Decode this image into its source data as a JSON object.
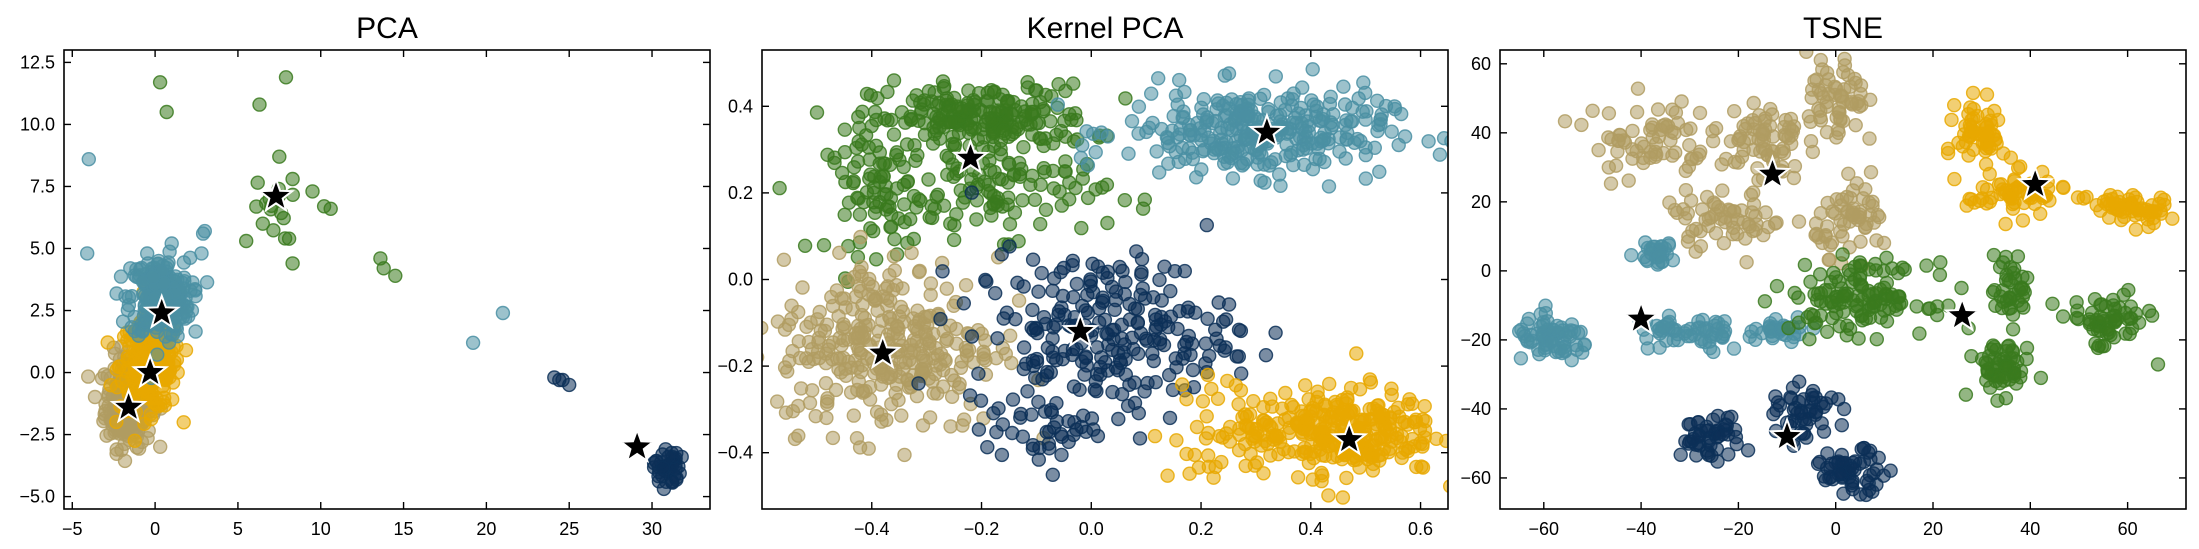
{
  "colors": {
    "cluster_teal": "#4a8fa3",
    "cluster_green": "#3a7a1e",
    "cluster_tan": "#b09c62",
    "cluster_gold": "#e8a800",
    "cluster_navy": "#0c3058",
    "star": "#000000"
  },
  "chart_data": [
    {
      "type": "scatter",
      "title": "PCA",
      "xlim": [
        -5.5,
        33.5
      ],
      "ylim": [
        -5.5,
        13.0
      ],
      "xticks": [
        -5,
        0,
        5,
        10,
        15,
        20,
        25,
        30
      ],
      "yticks": [
        -5.0,
        -2.5,
        0.0,
        2.5,
        5.0,
        7.5,
        10.0,
        12.5
      ],
      "xtick_labels": [
        "−5",
        "0",
        "5",
        "10",
        "15",
        "20",
        "25",
        "30"
      ],
      "ytick_labels": [
        "−5.0",
        "−2.5",
        "0.0",
        "2.5",
        "5.0",
        "7.5",
        "10.0",
        "12.5"
      ],
      "clusters": [
        {
          "color": "cluster_tan",
          "cx": -1.6,
          "cy": -1.2,
          "sx": 0.7,
          "sy": 0.9,
          "n": 260,
          "extra": [
            [
              -2.5,
              1.0
            ],
            [
              -1.9,
              -2.4
            ]
          ]
        },
        {
          "color": "cluster_gold",
          "cx": -0.3,
          "cy": 0.3,
          "sx": 0.9,
          "sy": 0.9,
          "n": 260,
          "extra": [
            [
              0.8,
              1.0
            ]
          ]
        },
        {
          "color": "cluster_teal",
          "cx": 0.3,
          "cy": 3.0,
          "sx": 0.9,
          "sy": 0.8,
          "n": 260,
          "extra": [
            [
              -4.0,
              8.6
            ],
            [
              -4.1,
              4.8
            ],
            [
              2.9,
              5.6
            ],
            [
              3.0,
              5.7
            ],
            [
              2.8,
              4.8
            ],
            [
              1.0,
              5.2
            ],
            [
              -1.5,
              4.2
            ]
          ]
        },
        {
          "color": "cluster_green",
          "cx": 7.2,
          "cy": 6.5,
          "sx": 0.6,
          "sy": 0.6,
          "n": 14,
          "extra": [
            [
              0.3,
              11.7
            ],
            [
              0.7,
              10.5
            ],
            [
              7.9,
              11.9
            ],
            [
              6.3,
              10.8
            ],
            [
              5.5,
              5.3
            ],
            [
              10.6,
              6.6
            ],
            [
              10.2,
              6.7
            ],
            [
              9.5,
              7.3
            ],
            [
              8.3,
              7.8
            ],
            [
              13.6,
              4.6
            ],
            [
              13.8,
              4.2
            ],
            [
              14.5,
              3.9
            ],
            [
              8.3,
              4.4
            ],
            [
              7.5,
              8.7
            ],
            [
              6.5,
              6.0
            ]
          ]
        },
        {
          "color": "cluster_teal",
          "cx": 0,
          "cy": 0,
          "sx": 0,
          "sy": 0,
          "n": 0,
          "extra": [
            [
              19.2,
              1.2
            ],
            [
              21.0,
              2.4
            ]
          ]
        },
        {
          "color": "cluster_navy",
          "cx": 30.9,
          "cy": -3.8,
          "sx": 0.4,
          "sy": 0.4,
          "n": 40,
          "extra": [
            [
              24.1,
              -0.2
            ],
            [
              24.6,
              -0.3
            ],
            [
              25.0,
              -0.5
            ],
            [
              24.4,
              -0.3
            ]
          ]
        }
      ],
      "stars": [
        [
          7.3,
          7.1
        ],
        [
          0.4,
          2.4
        ],
        [
          -0.3,
          0.0
        ],
        [
          -1.6,
          -1.4
        ],
        [
          29.1,
          -3.0
        ]
      ]
    },
    {
      "type": "scatter",
      "title": "Kernel PCA",
      "xlim": [
        -0.6,
        0.65
      ],
      "ylim": [
        -0.53,
        0.53
      ],
      "xticks": [
        -0.4,
        -0.2,
        0.0,
        0.2,
        0.4,
        0.6
      ],
      "yticks": [
        -0.4,
        -0.2,
        0.0,
        0.2,
        0.4
      ],
      "xtick_labels": [
        "−0.4",
        "−0.2",
        "0.0",
        "0.2",
        "0.4",
        "0.6"
      ],
      "ytick_labels": [
        "−0.4",
        "−0.2",
        "0.0",
        "0.2",
        "0.4"
      ],
      "clusters": [
        {
          "color": "cluster_green",
          "cx": -0.2,
          "cy": 0.37,
          "sx": 0.1,
          "sy": 0.04,
          "n": 220,
          "extra": []
        },
        {
          "color": "cluster_green",
          "cx": -0.38,
          "cy": 0.2,
          "sx": 0.05,
          "sy": 0.07,
          "n": 90,
          "extra": []
        },
        {
          "color": "cluster_green",
          "cx": -0.15,
          "cy": 0.2,
          "sx": 0.09,
          "sy": 0.05,
          "n": 90,
          "extra": []
        },
        {
          "color": "cluster_teal",
          "cx": 0.3,
          "cy": 0.34,
          "sx": 0.12,
          "sy": 0.05,
          "n": 320,
          "extra": []
        },
        {
          "color": "cluster_tan",
          "cx": -0.37,
          "cy": -0.15,
          "sx": 0.1,
          "sy": 0.1,
          "n": 330,
          "extra": []
        },
        {
          "color": "cluster_navy",
          "cx": 0.02,
          "cy": -0.12,
          "sx": 0.12,
          "sy": 0.09,
          "n": 240,
          "extra": []
        },
        {
          "color": "cluster_navy",
          "cx": -0.08,
          "cy": -0.35,
          "sx": 0.06,
          "sy": 0.04,
          "n": 40,
          "extra": []
        },
        {
          "color": "cluster_gold",
          "cx": 0.45,
          "cy": -0.35,
          "sx": 0.09,
          "sy": 0.05,
          "n": 300,
          "extra": []
        },
        {
          "color": "cluster_gold",
          "cx": 0.25,
          "cy": -0.35,
          "sx": 0.07,
          "sy": 0.06,
          "n": 40,
          "extra": []
        }
      ],
      "stars": [
        [
          -0.22,
          0.28
        ],
        [
          0.32,
          0.34
        ],
        [
          -0.38,
          -0.17
        ],
        [
          -0.02,
          -0.12
        ],
        [
          0.47,
          -0.37
        ]
      ]
    },
    {
      "type": "scatter",
      "title": "TSNE",
      "xlim": [
        -69,
        72
      ],
      "ylim": [
        -69,
        64
      ],
      "xticks": [
        -60,
        -40,
        -20,
        0,
        20,
        40,
        60
      ],
      "yticks": [
        -60,
        -40,
        -20,
        0,
        20,
        40,
        60
      ],
      "xtick_labels": [
        "−60",
        "−40",
        "−20",
        "0",
        "20",
        "40",
        "60"
      ],
      "ytick_labels": [
        "−60",
        "−40",
        "−20",
        "0",
        "20",
        "40",
        "60"
      ],
      "clusters": [
        {
          "color": "cluster_tan",
          "cx": -38,
          "cy": 38,
          "sx": 6,
          "sy": 6,
          "n": 70,
          "extra": []
        },
        {
          "color": "cluster_tan",
          "cx": -15,
          "cy": 38,
          "sx": 4,
          "sy": 6,
          "n": 70,
          "extra": []
        },
        {
          "color": "cluster_tan",
          "cx": -22,
          "cy": 15,
          "sx": 6,
          "sy": 4,
          "n": 60,
          "extra": []
        },
        {
          "color": "cluster_tan",
          "cx": 0,
          "cy": 48,
          "sx": 3,
          "sy": 7,
          "n": 60,
          "extra": []
        },
        {
          "color": "cluster_tan",
          "cx": 4,
          "cy": 15,
          "sx": 4,
          "sy": 5,
          "n": 60,
          "extra": []
        },
        {
          "color": "cluster_teal",
          "cx": -58,
          "cy": -20,
          "sx": 4,
          "sy": 3,
          "n": 70,
          "extra": []
        },
        {
          "color": "cluster_teal",
          "cx": -30,
          "cy": -18,
          "sx": 6,
          "sy": 3,
          "n": 60,
          "extra": []
        },
        {
          "color": "cluster_teal",
          "cx": -37,
          "cy": 5,
          "sx": 2,
          "sy": 1.5,
          "n": 30,
          "extra": []
        },
        {
          "color": "cluster_teal",
          "cx": -12,
          "cy": -16,
          "sx": 4,
          "sy": 2,
          "n": 30,
          "extra": []
        },
        {
          "color": "cluster_green",
          "cx": 5,
          "cy": -8,
          "sx": 7,
          "sy": 5,
          "n": 130,
          "extra": []
        },
        {
          "color": "cluster_green",
          "cx": 34,
          "cy": -28,
          "sx": 3,
          "sy": 4,
          "n": 60,
          "extra": []
        },
        {
          "color": "cluster_green",
          "cx": 56,
          "cy": -15,
          "sx": 4,
          "sy": 4,
          "n": 60,
          "extra": []
        },
        {
          "color": "cluster_green",
          "cx": 36,
          "cy": -5,
          "sx": 2,
          "sy": 5,
          "n": 40,
          "extra": []
        },
        {
          "color": "cluster_gold",
          "cx": 30,
          "cy": 40,
          "sx": 2.5,
          "sy": 5,
          "n": 60,
          "extra": []
        },
        {
          "color": "cluster_gold",
          "cx": 37,
          "cy": 22,
          "sx": 5,
          "sy": 3,
          "n": 60,
          "extra": []
        },
        {
          "color": "cluster_gold",
          "cx": 60,
          "cy": 18,
          "sx": 4,
          "sy": 2.5,
          "n": 60,
          "extra": []
        },
        {
          "color": "cluster_navy",
          "cx": -26,
          "cy": -48,
          "sx": 3,
          "sy": 3,
          "n": 50,
          "extra": []
        },
        {
          "color": "cluster_navy",
          "cx": -6,
          "cy": -42,
          "sx": 3,
          "sy": 4,
          "n": 50,
          "extra": []
        },
        {
          "color": "cluster_navy",
          "cx": 3,
          "cy": -58,
          "sx": 4,
          "sy": 3,
          "n": 60,
          "extra": [
            [
              -18,
              -52
            ]
          ]
        }
      ],
      "stars": [
        [
          -13,
          28
        ],
        [
          41,
          25
        ],
        [
          -40,
          -14
        ],
        [
          26,
          -13
        ],
        [
          -10,
          -48
        ]
      ]
    }
  ]
}
